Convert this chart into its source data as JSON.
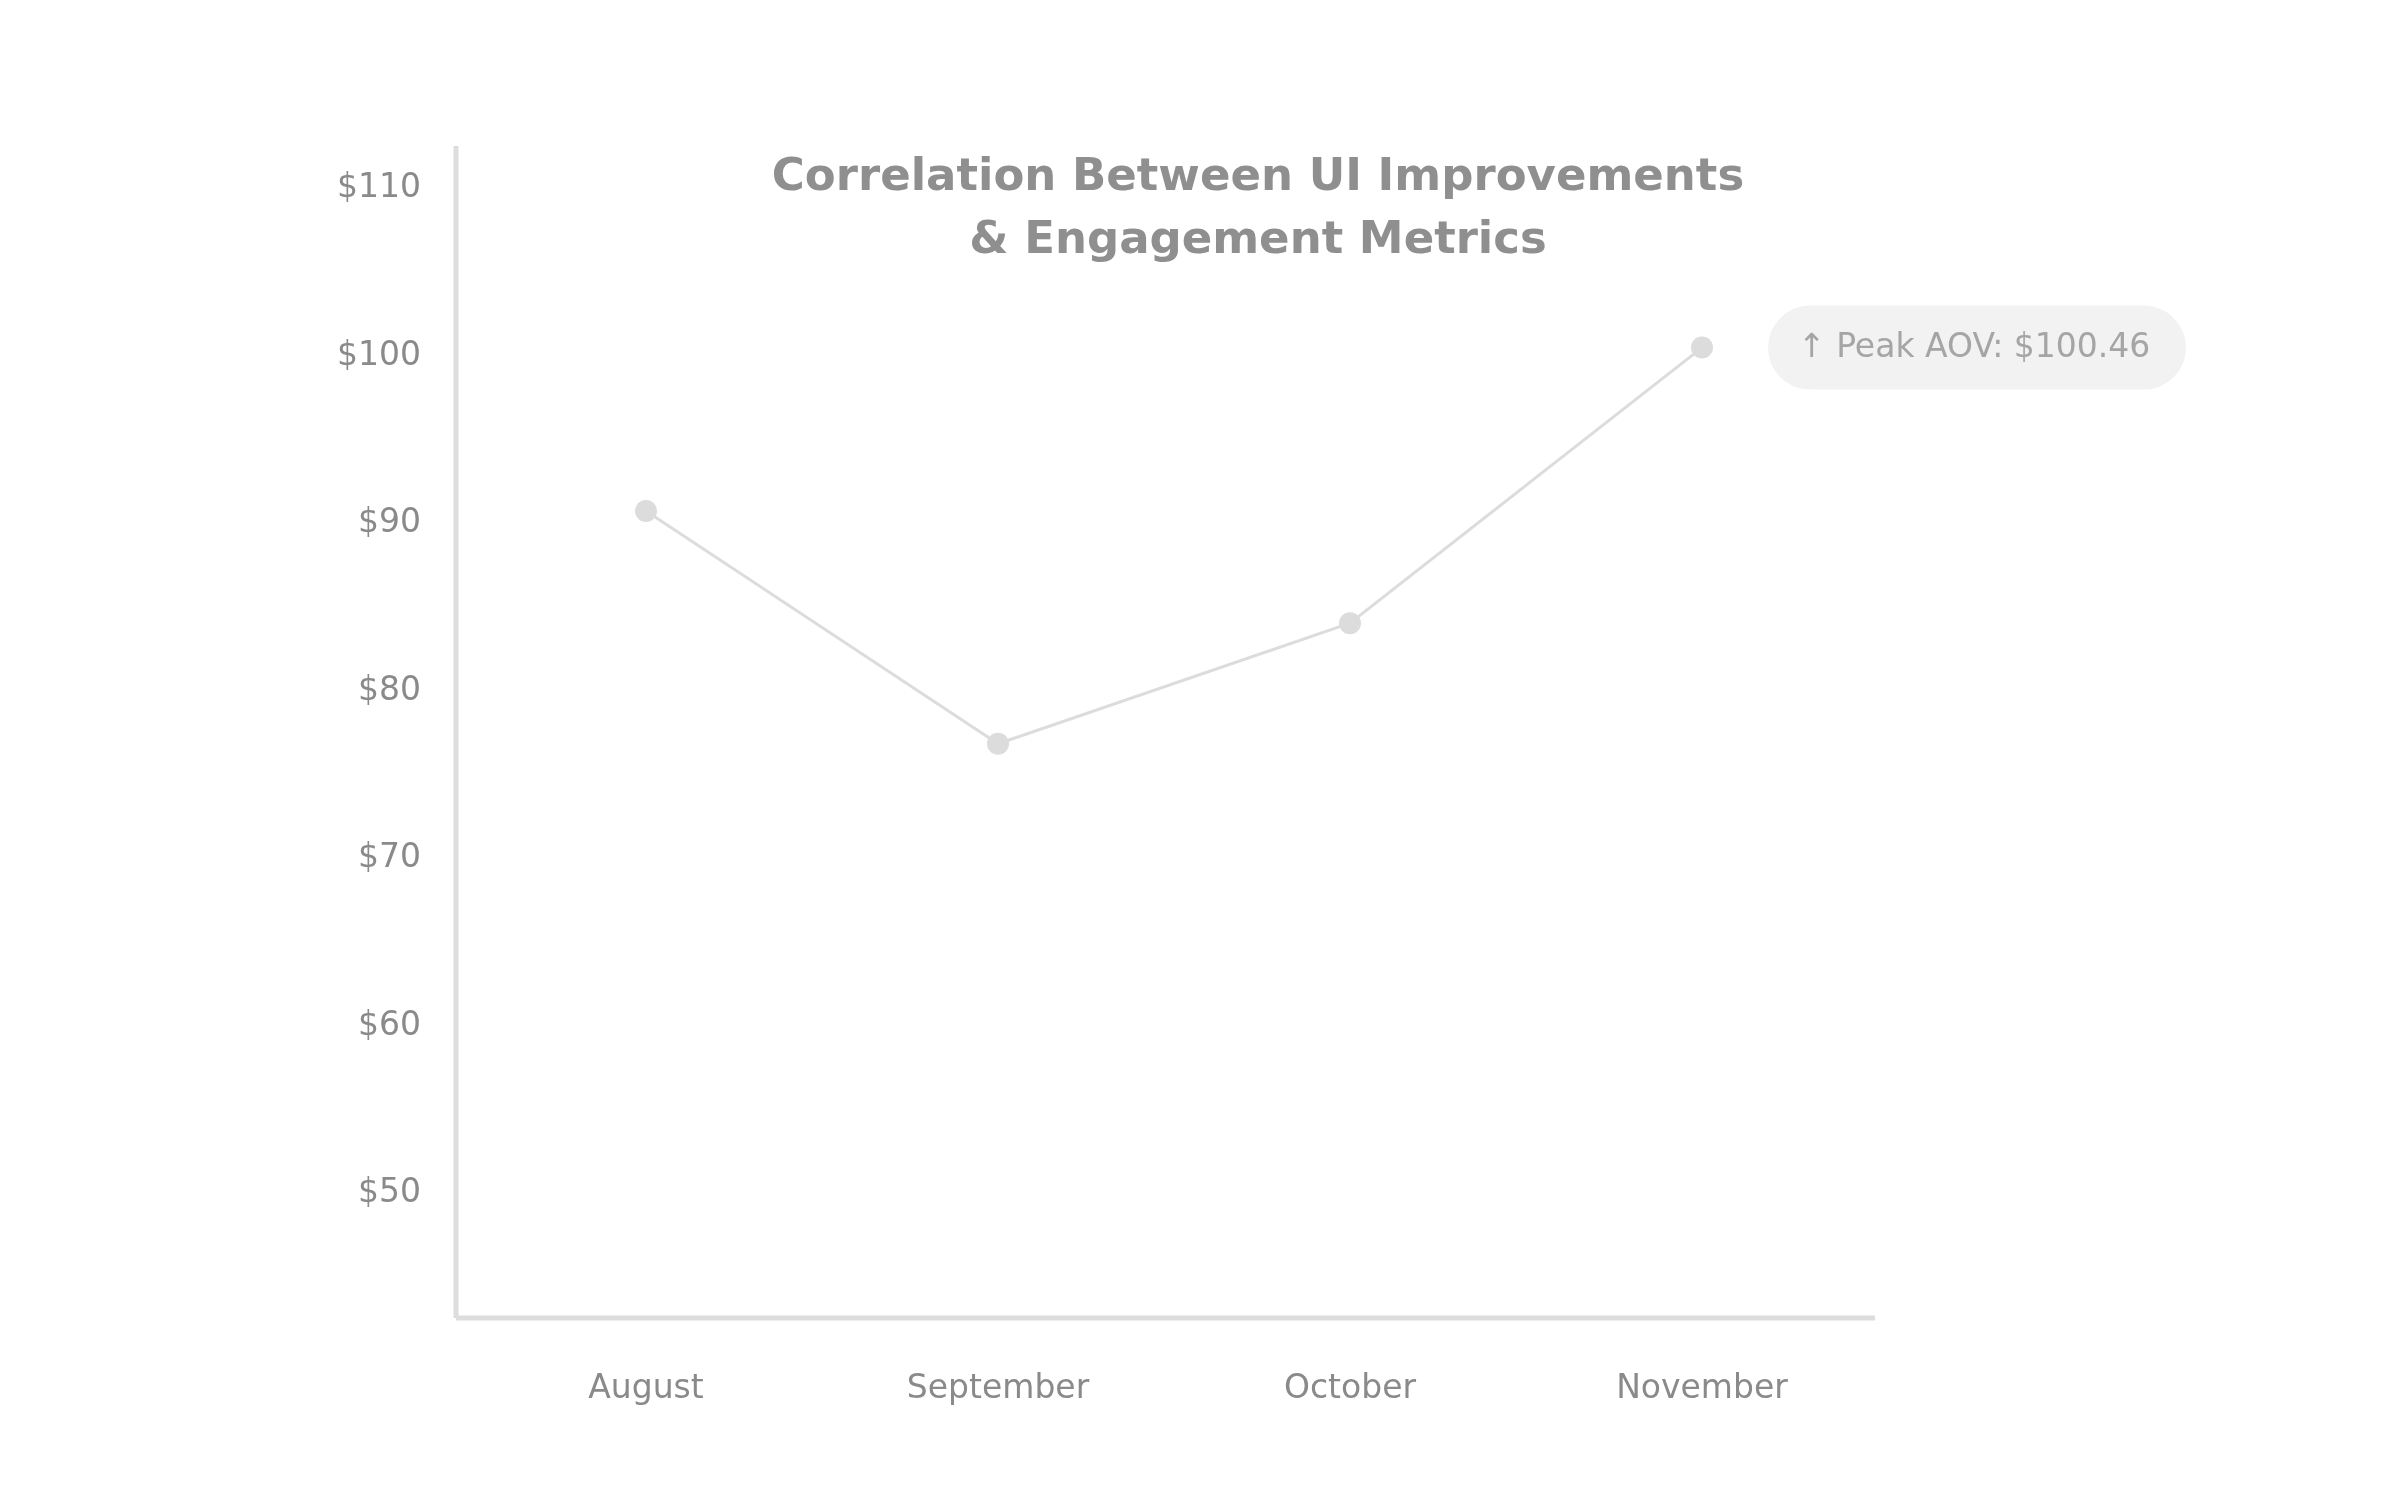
{
  "chart_data": {
    "type": "line",
    "title": "Correlation Between UI Improvements\n& Engagement Metrics",
    "categories": [
      "August",
      "September",
      "October",
      "November"
    ],
    "series": [
      {
        "color": "#dcdcdc",
        "values": [
          90.7,
          76.8,
          84.0,
          100.46
        ]
      }
    ],
    "ylim": [
      42.5,
      112.5
    ],
    "yticks": [
      {
        "value": 50,
        "label": "$50"
      },
      {
        "value": 60,
        "label": "$60"
      },
      {
        "value": 70,
        "label": "$70"
      },
      {
        "value": 80,
        "label": "$80"
      },
      {
        "value": 90,
        "label": "$90"
      },
      {
        "value": 100,
        "label": "$100"
      },
      {
        "value": 110,
        "label": "$110"
      }
    ],
    "grid": false,
    "marker": "circle",
    "line_style": "solid",
    "annotations": [
      {
        "text": "↑ Peak AOV: $100.46",
        "x": "November",
        "y": 100.46
      }
    ]
  }
}
